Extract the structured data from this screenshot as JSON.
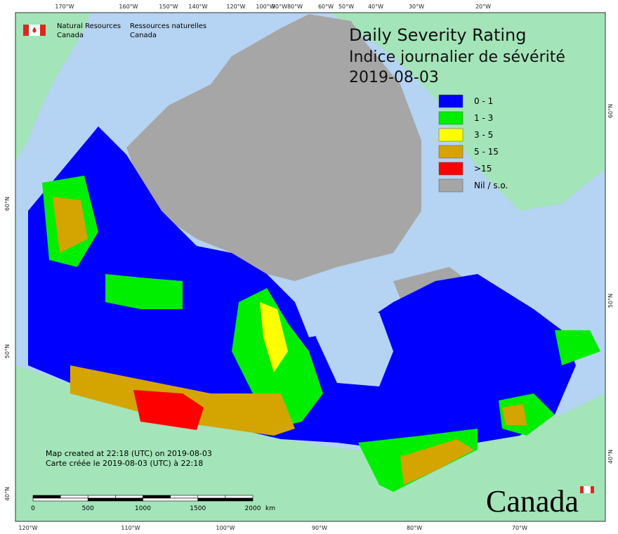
{
  "header": {
    "agency_en": [
      "Natural Resources",
      "Canada"
    ],
    "agency_fr": [
      "Ressources naturelles",
      "Canada"
    ]
  },
  "title": {
    "en": "Daily Severity Rating",
    "fr": "Indice journalier de sévérité",
    "date": "2019-08-03"
  },
  "legend": [
    {
      "label": "0 - 1",
      "color": "#0000ff"
    },
    {
      "label": "1 - 3",
      "color": "#00ee00"
    },
    {
      "label": "3 - 5",
      "color": "#ffff00"
    },
    {
      "label": "5 - 15",
      "color": "#d4a400"
    },
    {
      "label": ">15",
      "color": "#ff0000"
    },
    {
      "label": "Nil / s.o.",
      "color": "#a6a6a6"
    }
  ],
  "top_labels": [
    "170°W",
    "160°W",
    "150°W",
    "140°W",
    "120°W",
    "100°W",
    "90°W",
    "80°W",
    "60°W",
    "50°W",
    "40°W",
    "30°W",
    "20°W"
  ],
  "bottom_labels": [
    "120°W",
    "110°W",
    "100°W",
    "90°W",
    "80°W",
    "70°W"
  ],
  "left_labels": [
    "60°N",
    "50°N",
    "40°N"
  ],
  "right_labels": [
    "60°N",
    "50°N",
    "40°N"
  ],
  "credits": [
    "Map created at 22:18 (UTC) on 2019-08-03",
    "Carte créée le 2019-08-03 (UTC) à 22:18"
  ],
  "scale_bar": {
    "labels": [
      "0",
      "500",
      "1000",
      "1500",
      "2000"
    ],
    "unit": "km"
  },
  "wordmark": "Canada"
}
